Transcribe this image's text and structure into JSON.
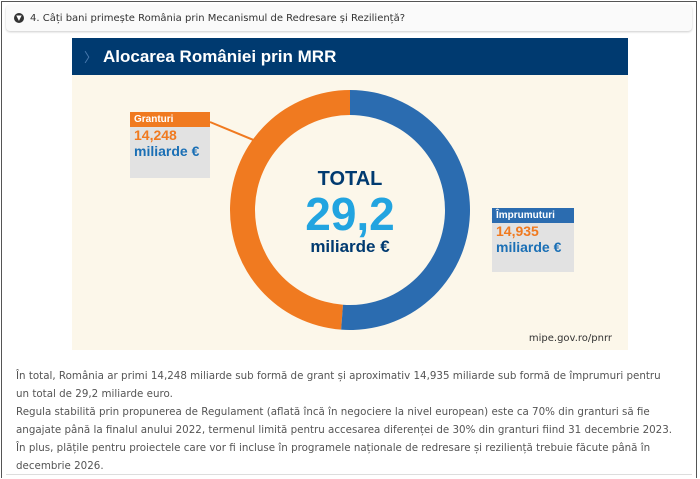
{
  "question": {
    "title": "4. Câți bani primește România prin Mecanismul de Redresare și Reziliență?",
    "icon": "chevron-down-circle-icon"
  },
  "infographic": {
    "title": "Alocarea României prin MRR",
    "total_label": "TOTAL",
    "total_value": "29,2",
    "total_unit": "miliarde €",
    "grants": {
      "label": "Granturi",
      "value": "14,248",
      "unit": "miliarde €",
      "color": "#f07a20"
    },
    "loans": {
      "label": "Împrumuturi",
      "value": "14,935",
      "unit": "miliarde €",
      "color": "#2b6cb0"
    },
    "source": "mipe.gov.ro/pnrr"
  },
  "chart_data": {
    "type": "pie",
    "title": "Alocarea României prin MRR",
    "categories": [
      "Granturi",
      "Împrumuturi"
    ],
    "values": [
      14.248,
      14.935
    ],
    "unit": "miliarde €"
  },
  "paragraphs": [
    "În total, România ar primi 14,248 miliarde sub formă de grant și aproximativ 14,935 miliarde sub formă de împrumuri pentru un total de 29,2 miliarde euro.",
    "Regula stabilită prin propunerea de Regulament (aflată încă în negociere la nivel european) este ca 70% din granturi să fie angajate până la finalul anului 2022, termenul limită pentru accesarea diferenței de 30% din granturi fiind 31 decembrie 2023. În plus, plățile pentru proiectele care vor fi incluse în programele naționale de redresare și reziliență trebuie făcute până în decembrie 2026."
  ]
}
